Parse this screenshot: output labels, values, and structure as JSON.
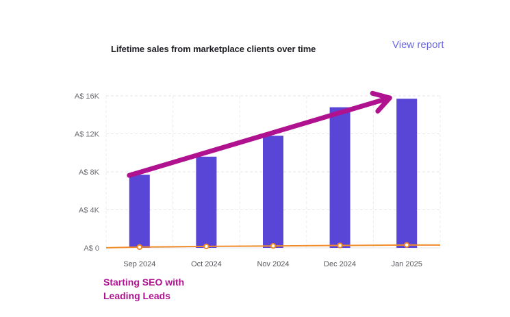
{
  "header": {
    "title": "Lifetime sales from marketplace clients over time",
    "view_report_label": "View report"
  },
  "annotation": {
    "line1": "Starting SEO with",
    "line2": "Leading Leads",
    "arrow_color": "#b0128f"
  },
  "colors": {
    "bar": "#5a46d6",
    "line": "#f08c2a",
    "accent": "#6a68e0",
    "annotation": "#b0128f"
  },
  "chart_data": {
    "type": "bar",
    "categories": [
      "Sep 2024",
      "Oct 2024",
      "Nov 2024",
      "Dec 2024",
      "Jan 2025"
    ],
    "series": [
      {
        "type": "bar",
        "values": [
          7700,
          9600,
          11800,
          14800,
          15700
        ]
      },
      {
        "type": "line",
        "values": [
          80,
          150,
          200,
          250,
          300
        ]
      }
    ],
    "yticks": [
      "A$ 0",
      "A$ 4K",
      "A$ 8K",
      "A$ 12K",
      "A$ 16K"
    ],
    "ylim": [
      0,
      16000
    ],
    "grid": true,
    "xlabel": "",
    "ylabel": "",
    "annotation_arrow": {
      "from_category": "Sep 2024",
      "to_category": "Jan 2025",
      "direction": "up"
    }
  }
}
